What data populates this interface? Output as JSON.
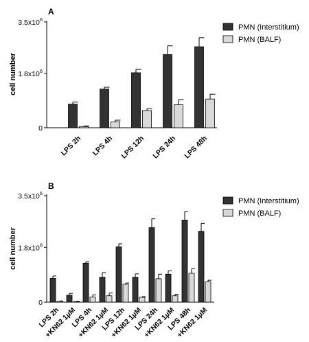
{
  "chart_data": [
    {
      "type": "bar",
      "panel_label": "A",
      "ylabel": "cell number",
      "ylim": [
        0,
        3500000
      ],
      "yticks": [
        0,
        1800000,
        3500000
      ],
      "ytick_labels": [
        {
          "base": "0",
          "exp": ""
        },
        {
          "base": "1.8x10",
          "exp": "6"
        },
        {
          "base": "3.5x10",
          "exp": "6"
        }
      ],
      "categories": [
        "LPS 2h",
        "LPS 4h",
        "LPS 12h",
        "LPS 24h",
        "LPS 48h"
      ],
      "series": [
        {
          "name": "PMN (Interstitium)",
          "color": "#333333",
          "values": [
            780000,
            1280000,
            1820000,
            2420000,
            2680000
          ],
          "errors": [
            70000,
            60000,
            110000,
            290000,
            300000
          ]
        },
        {
          "name": "PMN (BALF)",
          "color": "#d9d9d9",
          "values": [
            40000,
            190000,
            570000,
            760000,
            950000
          ],
          "errors": [
            20000,
            60000,
            60000,
            170000,
            160000
          ]
        }
      ],
      "legend": "top-right"
    },
    {
      "type": "bar",
      "panel_label": "B",
      "ylabel": "cell number",
      "ylim": [
        0,
        3500000
      ],
      "yticks": [
        0,
        1800000,
        3500000
      ],
      "ytick_labels": [
        {
          "base": "0",
          "exp": ""
        },
        {
          "base": "1.8x10",
          "exp": "6"
        },
        {
          "base": "3.5x10",
          "exp": "6"
        }
      ],
      "categories": [
        "LPS 2h",
        "+KN62 1µM",
        "LPS 4h",
        "+KN62 1µM",
        "LPS 12h",
        "+KN62 1µM",
        "LPS 24h",
        "+KN62 1µM",
        "LPS 48h",
        "+KN62 1µM"
      ],
      "series": [
        {
          "name": "PMN (Interstitium)",
          "color": "#333333",
          "values": [
            780000,
            230000,
            1280000,
            820000,
            1820000,
            820000,
            2450000,
            920000,
            2700000,
            2330000
          ],
          "errors": [
            80000,
            60000,
            50000,
            150000,
            100000,
            110000,
            290000,
            110000,
            280000,
            260000
          ]
        },
        {
          "name": "PMN (BALF)",
          "color": "#d9d9d9",
          "values": [
            30000,
            20000,
            170000,
            210000,
            590000,
            160000,
            770000,
            210000,
            950000,
            670000
          ],
          "errors": [
            10000,
            10000,
            70000,
            90000,
            40000,
            20000,
            150000,
            50000,
            150000,
            50000
          ]
        }
      ],
      "legend": "top-right"
    }
  ]
}
